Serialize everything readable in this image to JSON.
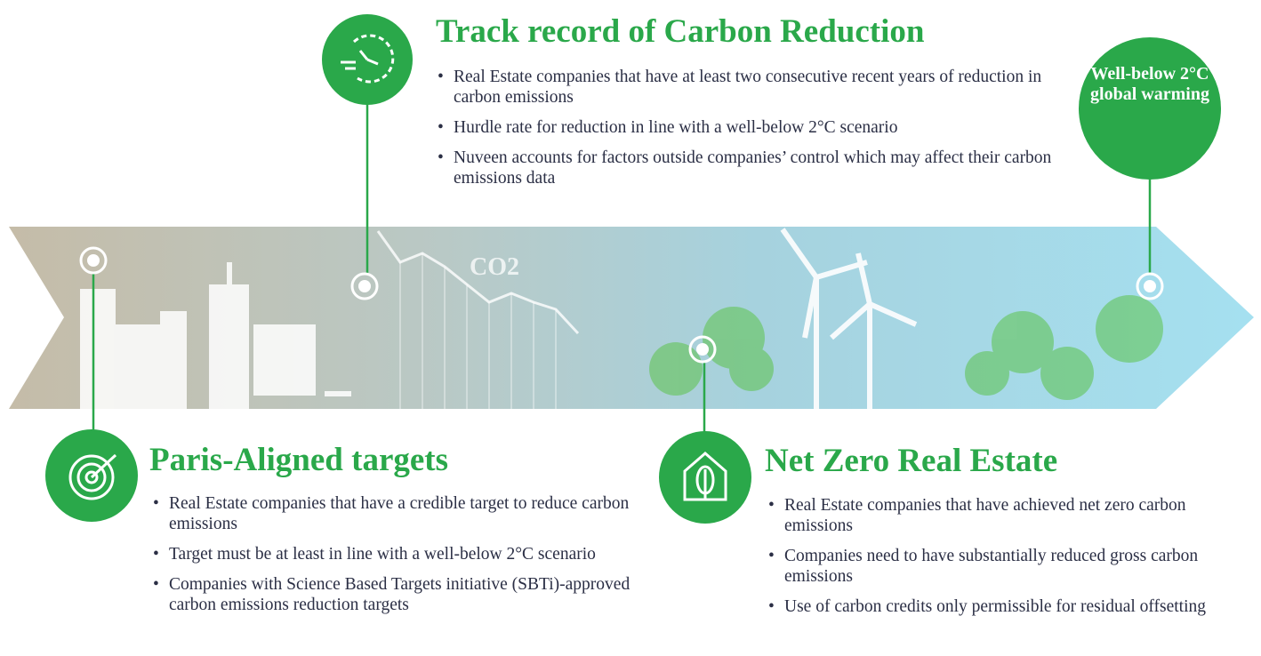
{
  "band": {
    "co2_label": "CO2"
  },
  "goal": {
    "label": "Well-below 2°C global warming"
  },
  "sections": [
    {
      "title": "Track record of Carbon Reduction",
      "bullets": [
        "Real Estate companies that have at least two consecutive recent years of reduction in carbon emissions",
        "Hurdle rate for reduction in line with a well-below 2°C scenario",
        "Nuveen accounts for factors outside companies’ control which may affect their carbon emissions data"
      ]
    },
    {
      "title": "Paris-Aligned targets",
      "bullets": [
        "Real Estate companies that have a credible target to reduce carbon emissions",
        "Target must be at least in line with a well-below 2°C scenario",
        "Companies with Science Based Targets initiative (SBTi)-approved carbon emissions reduction targets"
      ]
    },
    {
      "title": "Net Zero Real Estate",
      "bullets": [
        "Real Estate companies that have achieved net zero carbon emissions",
        "Companies need to have substantially reduced gross carbon emissions",
        "Use of carbon credits only permissible for residual offsetting"
      ]
    }
  ]
}
